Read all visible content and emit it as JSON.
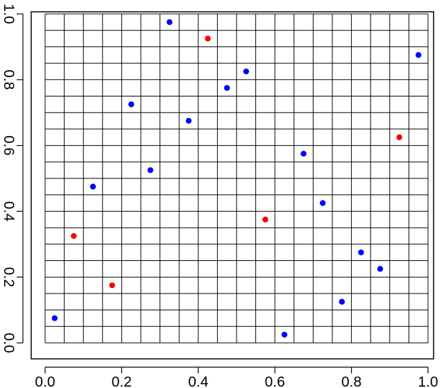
{
  "chart_data": {
    "type": "scatter",
    "title": "",
    "xlabel": "",
    "ylabel": "",
    "xlim": [
      0.0,
      1.0
    ],
    "ylim": [
      0.0,
      1.0
    ],
    "grid": {
      "on": true,
      "x_divisions": 20,
      "y_divisions": 20,
      "color": "#000000"
    },
    "x_ticks": [
      {
        "value": 0.0,
        "label": "0.0"
      },
      {
        "value": 0.2,
        "label": "0.2"
      },
      {
        "value": 0.4,
        "label": "0.4"
      },
      {
        "value": 0.6,
        "label": "0.6"
      },
      {
        "value": 0.8,
        "label": "0.8"
      },
      {
        "value": 1.0,
        "label": "1.0"
      }
    ],
    "y_ticks": [
      {
        "value": 0.0,
        "label": "0.0"
      },
      {
        "value": 0.2,
        "label": "0.2"
      },
      {
        "value": 0.4,
        "label": "0.4"
      },
      {
        "value": 0.6,
        "label": "0.6"
      },
      {
        "value": 0.8,
        "label": "0.8"
      },
      {
        "value": 1.0,
        "label": "1.0"
      }
    ],
    "series": [
      {
        "color": "#0000ff",
        "points": [
          {
            "x": 0.025,
            "y": 0.075
          },
          {
            "x": 0.125,
            "y": 0.475
          },
          {
            "x": 0.225,
            "y": 0.725
          },
          {
            "x": 0.275,
            "y": 0.525
          },
          {
            "x": 0.325,
            "y": 0.975
          },
          {
            "x": 0.375,
            "y": 0.675
          },
          {
            "x": 0.475,
            "y": 0.775
          },
          {
            "x": 0.525,
            "y": 0.825
          },
          {
            "x": 0.625,
            "y": 0.025
          },
          {
            "x": 0.675,
            "y": 0.575
          },
          {
            "x": 0.725,
            "y": 0.425
          },
          {
            "x": 0.775,
            "y": 0.125
          },
          {
            "x": 0.825,
            "y": 0.275
          },
          {
            "x": 0.875,
            "y": 0.225
          },
          {
            "x": 0.975,
            "y": 0.875
          }
        ]
      },
      {
        "color": "#ff0000",
        "points": [
          {
            "x": 0.075,
            "y": 0.325
          },
          {
            "x": 0.175,
            "y": 0.175
          },
          {
            "x": 0.425,
            "y": 0.925
          },
          {
            "x": 0.575,
            "y": 0.375
          },
          {
            "x": 0.925,
            "y": 0.625
          }
        ]
      }
    ]
  }
}
